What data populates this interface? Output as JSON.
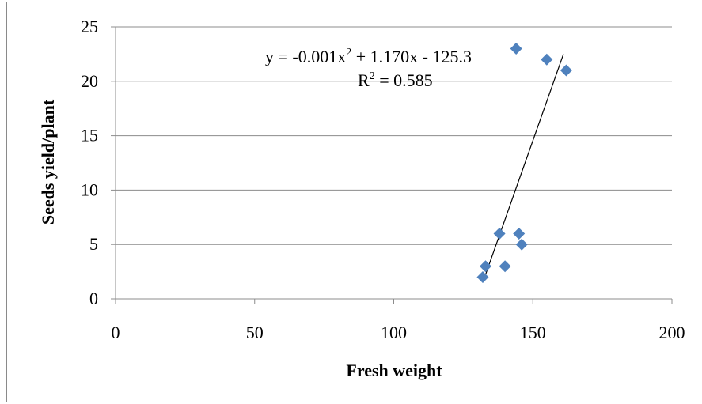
{
  "chart_data": {
    "type": "scatter",
    "title": "",
    "xlabel": "Fresh weight",
    "ylabel": "Seeds yield/plant",
    "xlim": [
      0,
      200
    ],
    "ylim": [
      0,
      25
    ],
    "xticks": [
      "0",
      "50",
      "100",
      "150",
      "200"
    ],
    "yticks": [
      "0",
      "5",
      "10",
      "15",
      "20",
      "25"
    ],
    "grid": "horizontal",
    "marker_color": "#4f81bd",
    "trendline_color": "#000000",
    "series": [
      {
        "points": [
          {
            "x": 132,
            "y": 2
          },
          {
            "x": 133,
            "y": 3
          },
          {
            "x": 138,
            "y": 6
          },
          {
            "x": 140,
            "y": 3
          },
          {
            "x": 144,
            "y": 23
          },
          {
            "x": 145,
            "y": 6
          },
          {
            "x": 146,
            "y": 5
          },
          {
            "x": 155,
            "y": 22
          },
          {
            "x": 162,
            "y": 21
          }
        ]
      }
    ],
    "trendline": {
      "from": {
        "x": 132,
        "y": 1.5
      },
      "to": {
        "x": 161,
        "y": 22.5
      }
    },
    "annotations": {
      "equation_prefix": "y = -0.001x",
      "equation_exp1": "2",
      "equation_suffix": " + 1.170x - 125.3",
      "r2_prefix": "R",
      "r2_exp": "2",
      "r2_suffix": " = 0.585"
    }
  }
}
